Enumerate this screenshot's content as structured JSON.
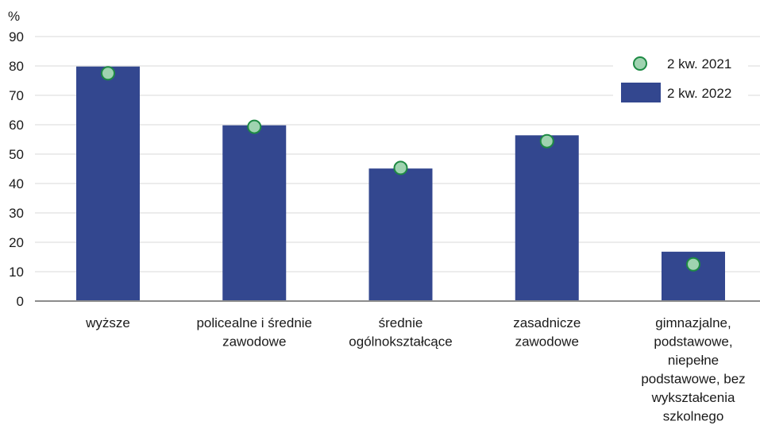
{
  "chart_data": {
    "type": "bar",
    "y_unit_label": "%",
    "ylim": [
      0,
      90
    ],
    "yticks": [
      0,
      10,
      20,
      30,
      40,
      50,
      60,
      70,
      80,
      90
    ],
    "grid": true,
    "legend_position": "top-right",
    "categories": [
      [
        "wyższe"
      ],
      [
        "policealne i średnie",
        "zawodowe"
      ],
      [
        "średnie",
        "ogólnokształcące"
      ],
      [
        "zasadnicze",
        "zawodowe"
      ],
      [
        "gimnazjalne,",
        "podstawowe,",
        "niepełne",
        "podstawowe, bez",
        "wykształcenia",
        "szkolnego"
      ]
    ],
    "series": [
      {
        "name": "2 kw. 2022",
        "kind": "bar",
        "color": "#33478f",
        "values": [
          79.8,
          59.8,
          45.1,
          56.4,
          16.8
        ]
      },
      {
        "name": "2 kw. 2021",
        "kind": "marker",
        "color": "#9fd3b0",
        "stroke": "#1e8a44",
        "values": [
          77.5,
          59.3,
          45.3,
          54.4,
          12.5
        ]
      }
    ]
  }
}
